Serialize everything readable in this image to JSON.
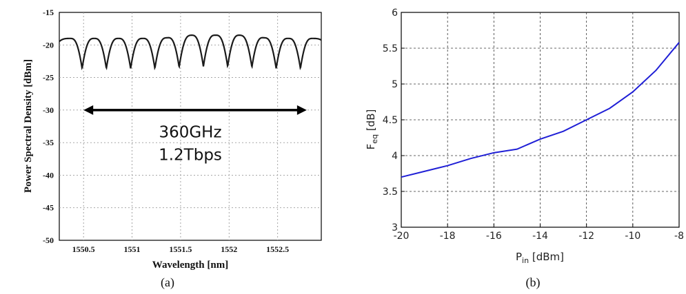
{
  "chart_data": [
    {
      "panel_label": "(a)",
      "type": "line",
      "xlabel": "Wavelength [nm]",
      "ylabel": "Power Spectral Density [dBm]",
      "xlim": [
        1550.25,
        1552.95
      ],
      "ylim": [
        -50,
        -15
      ],
      "xticks": [
        1550.5,
        1551,
        1551.5,
        1552,
        1552.5
      ],
      "xtick_labels": [
        "1550.5",
        "1551",
        "1551.5",
        "1552",
        "1552.5"
      ],
      "yticks": [
        -50,
        -45,
        -40,
        -35,
        -30,
        -25,
        -20,
        -15
      ],
      "ytick_labels": [
        "-50",
        "-45",
        "-40",
        "-35",
        "-30",
        "-25",
        "-20",
        "-15"
      ],
      "grid": true,
      "series": [
        {
          "comb": {
            "first_peak": 1550.36,
            "period_nm": 0.25,
            "peak_count": 11,
            "peak_levels": [
              -19.0,
              -19.0,
              -19.0,
              -19.0,
              -18.9,
              -18.5,
              -18.5,
              -18.5,
              -18.9,
              -19.0,
              -19.0
            ],
            "dip_levels": [
              -23.6,
              -23.6,
              -23.6,
              -23.6,
              -23.4,
              -23.3,
              -23.3,
              -23.4,
              -23.6,
              -23.6
            ],
            "edge_level": -23.9
          },
          "color": "#1a1a1a"
        }
      ],
      "annotation": {
        "arrow_from": [
          1550.5,
          -30
        ],
        "arrow_to": [
          1552.8,
          -30
        ],
        "arrow_style": "double-headed",
        "lines": [
          "360GHz",
          "1.2Tbps"
        ],
        "anchor": [
          1551.6,
          -34.2
        ]
      }
    },
    {
      "panel_label": "(b)",
      "type": "line",
      "xlabel": {
        "main": "P",
        "sub": "in",
        "rest": " [dBm]"
      },
      "ylabel": {
        "main": "F",
        "sub": "eq",
        "rest": " [dB]"
      },
      "xlim": [
        -20,
        -8
      ],
      "ylim": [
        3,
        6
      ],
      "xticks": [
        -20,
        -18,
        -16,
        -14,
        -12,
        -10,
        -8
      ],
      "xtick_labels": [
        "-20",
        "-18",
        "-16",
        "-14",
        "-12",
        "-10",
        "-8"
      ],
      "yticks": [
        3,
        3.5,
        4,
        4.5,
        5,
        5.5,
        6
      ],
      "ytick_labels": [
        "3",
        "3.5",
        "4",
        "4.5",
        "5",
        "5.5",
        "6"
      ],
      "grid": true,
      "series": [
        {
          "color": "#1f1fd6",
          "x": [
            -20,
            -19,
            -18,
            -17,
            -16,
            -15,
            -14,
            -13,
            -12,
            -11,
            -10,
            -9,
            -8
          ],
          "y": [
            3.7,
            3.78,
            3.86,
            3.96,
            4.04,
            4.09,
            4.23,
            4.34,
            4.5,
            4.66,
            4.89,
            5.19,
            5.58
          ]
        }
      ]
    }
  ]
}
